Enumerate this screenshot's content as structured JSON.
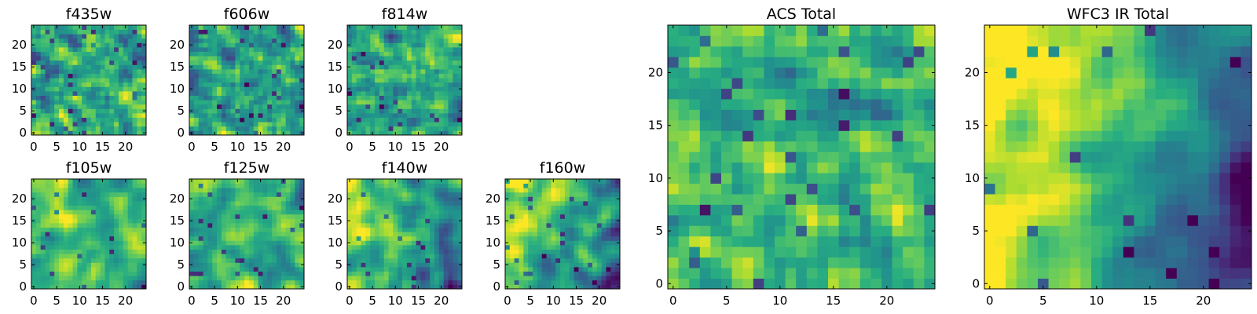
{
  "figure": {
    "background": "#ffffff",
    "colormap": "viridis"
  },
  "chart_data": [
    {
      "type": "heatmap",
      "title": "f435w",
      "xticks": [
        "0",
        "5",
        "10",
        "15",
        "20"
      ],
      "yticks": [
        "0",
        "5",
        "10",
        "15",
        "20"
      ],
      "grid_size": [
        25,
        25
      ],
      "xlim": [
        -0.5,
        24.5
      ],
      "ylim": [
        -0.5,
        24.5
      ],
      "value_range": [
        0,
        1
      ],
      "seed": 11,
      "smoothness": 0.25,
      "gradient": [
        0,
        0
      ],
      "mean": 0.6,
      "spread": 0.25,
      "grid": false
    },
    {
      "type": "heatmap",
      "title": "f606w",
      "xticks": [
        "0",
        "5",
        "10",
        "15",
        "20"
      ],
      "yticks": [
        "0",
        "5",
        "10",
        "15",
        "20"
      ],
      "grid_size": [
        25,
        25
      ],
      "xlim": [
        -0.5,
        24.5
      ],
      "ylim": [
        -0.5,
        24.5
      ],
      "value_range": [
        0,
        1
      ],
      "seed": 23,
      "smoothness": 0.25,
      "gradient": [
        0,
        0
      ],
      "mean": 0.62,
      "spread": 0.25,
      "grid": false
    },
    {
      "type": "heatmap",
      "title": "f814w",
      "xticks": [
        "0",
        "5",
        "10",
        "15",
        "20"
      ],
      "yticks": [
        "0",
        "5",
        "10",
        "15",
        "20"
      ],
      "grid_size": [
        25,
        25
      ],
      "xlim": [
        -0.5,
        24.5
      ],
      "ylim": [
        -0.5,
        24.5
      ],
      "value_range": [
        0,
        1
      ],
      "seed": 37,
      "smoothness": 0.25,
      "gradient": [
        0,
        0
      ],
      "mean": 0.6,
      "spread": 0.26,
      "grid": false
    },
    {
      "type": "heatmap",
      "title": "f105w",
      "xticks": [
        "0",
        "5",
        "10",
        "15",
        "20"
      ],
      "yticks": [
        "0",
        "5",
        "10",
        "15",
        "20"
      ],
      "grid_size": [
        25,
        25
      ],
      "xlim": [
        -0.5,
        24.5
      ],
      "ylim": [
        -0.5,
        24.5
      ],
      "value_range": [
        0,
        1
      ],
      "seed": 41,
      "smoothness": 0.55,
      "gradient": [
        0,
        0
      ],
      "mean": 0.66,
      "spread": 0.24,
      "grid": false
    },
    {
      "type": "heatmap",
      "title": "f125w",
      "xticks": [
        "0",
        "5",
        "10",
        "15",
        "20"
      ],
      "yticks": [
        "0",
        "5",
        "10",
        "15",
        "20"
      ],
      "grid_size": [
        25,
        25
      ],
      "xlim": [
        -0.5,
        24.5
      ],
      "ylim": [
        -0.5,
        24.5
      ],
      "value_range": [
        0,
        1
      ],
      "seed": 53,
      "smoothness": 0.6,
      "gradient": [
        0,
        0
      ],
      "mean": 0.64,
      "spread": 0.25,
      "grid": false
    },
    {
      "type": "heatmap",
      "title": "f140w",
      "xticks": [
        "0",
        "5",
        "10",
        "15",
        "20"
      ],
      "yticks": [
        "0",
        "5",
        "10",
        "15",
        "20"
      ],
      "grid_size": [
        25,
        25
      ],
      "xlim": [
        -0.5,
        24.5
      ],
      "ylim": [
        -0.5,
        24.5
      ],
      "value_range": [
        0,
        1
      ],
      "seed": 67,
      "smoothness": 0.6,
      "gradient": [
        -0.22,
        0.08
      ],
      "mean": 0.62,
      "spread": 0.22,
      "grid": false
    },
    {
      "type": "heatmap",
      "title": "f160w",
      "xticks": [
        "0",
        "5",
        "10",
        "15",
        "20"
      ],
      "yticks": [
        "0",
        "5",
        "10",
        "15",
        "20"
      ],
      "grid_size": [
        25,
        25
      ],
      "xlim": [
        -0.5,
        24.5
      ],
      "ylim": [
        -0.5,
        24.5
      ],
      "value_range": [
        0,
        1
      ],
      "seed": 79,
      "smoothness": 0.6,
      "gradient": [
        -0.28,
        0.1
      ],
      "mean": 0.63,
      "spread": 0.22,
      "grid": false
    },
    {
      "type": "heatmap",
      "title": "ACS Total",
      "xticks": [
        "0",
        "5",
        "10",
        "15",
        "20"
      ],
      "yticks": [
        "0",
        "5",
        "10",
        "15",
        "20"
      ],
      "grid_size": [
        25,
        25
      ],
      "xlim": [
        -0.5,
        24.5
      ],
      "ylim": [
        -0.5,
        24.5
      ],
      "value_range": [
        0,
        1
      ],
      "seed": 97,
      "smoothness": 0.15,
      "gradient": [
        0,
        0
      ],
      "mean": 0.66,
      "spread": 0.2,
      "grid": false
    },
    {
      "type": "heatmap",
      "title": "WFC3 IR Total",
      "xticks": [
        "0",
        "5",
        "10",
        "15",
        "20"
      ],
      "yticks": [
        "0",
        "5",
        "10",
        "15",
        "20"
      ],
      "grid_size": [
        25,
        25
      ],
      "xlim": [
        -0.5,
        24.5
      ],
      "ylim": [
        -0.5,
        24.5
      ],
      "value_range": [
        0,
        1
      ],
      "seed": 113,
      "smoothness": 0.45,
      "gradient": [
        -0.38,
        0.12
      ],
      "mean": 0.6,
      "spread": 0.16,
      "grid": false
    }
  ]
}
